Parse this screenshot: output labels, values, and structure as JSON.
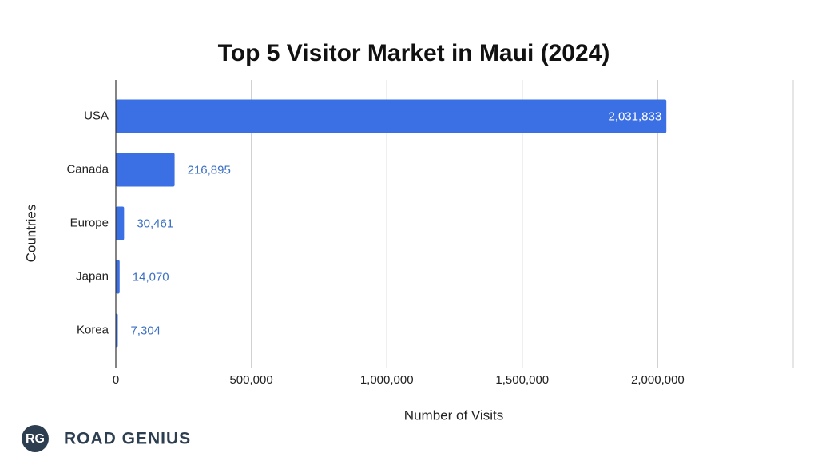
{
  "chart_data": {
    "type": "hbar",
    "title": "Top 5 Visitor Market in Maui (2024)",
    "x_label": "Number of Visits",
    "y_label": "Countries",
    "categories": [
      "USA",
      "Canada",
      "Europe",
      "Japan",
      "Korea"
    ],
    "values": [
      2031833,
      216895,
      30461,
      14070,
      7304
    ],
    "value_labels": [
      "2,031,833",
      "216,895",
      "30,461",
      "14,070",
      "7,304"
    ],
    "color": "#3b6fe4",
    "xlim": [
      0,
      2500000
    ],
    "xticks": [
      0,
      {
        "value": 500000,
        "label": "500,000"
      },
      {
        "value": 1000000,
        "label": "1,000,000"
      },
      {
        "value": 1500000,
        "label": "1,500,000"
      },
      {
        "value": 2000000,
        "label": "2,000,000"
      }
    ],
    "grid": true
  },
  "logo": {
    "initials": "RG",
    "text": "ROAD GENIUS"
  }
}
